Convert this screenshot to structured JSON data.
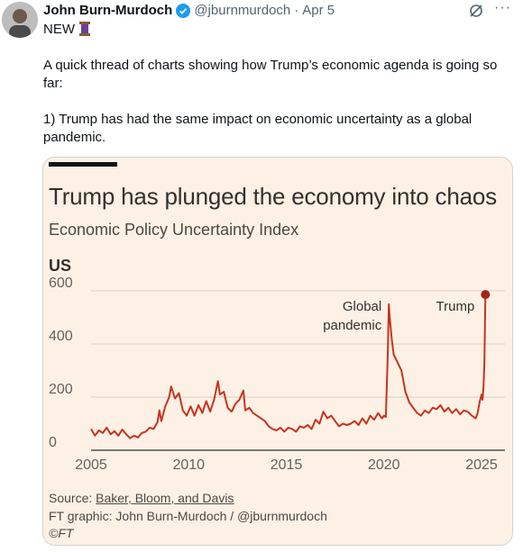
{
  "tweet": {
    "author_name": "John Burn-Murdoch",
    "handle": "@jburnmurdoch",
    "separator": "·",
    "date": "Apr 5",
    "more_label": "···",
    "line1": "NEW",
    "para1": "A quick thread of charts showing how Trump’s economic agenda is going so far:",
    "para2": "1) Trump has had the same impact on economic uncertainty as a global pandemic.",
    "icons": [
      "verified-badge-icon",
      "thread-spool-icon",
      "grok-icon",
      "more-icon"
    ],
    "colors": {
      "badge": "#1d9bf0",
      "text": "#0f1419",
      "muted": "#536471"
    }
  },
  "card": {
    "title": "Trump has plunged the economy into chaos",
    "subtitle": "Economic Policy Uncertainty Index",
    "unit": "US",
    "source_prefix": "Source: ",
    "source_link": "Baker, Bloom, and Davis",
    "credit": "FT graphic: John Burn-Murdoch / @jburnmurdoch",
    "copyright": "©FT",
    "colors": {
      "background": "#fdf1e6",
      "line": "#c8331f",
      "grid": "#d9cfc5"
    }
  },
  "chart_data": {
    "type": "line",
    "title": "Trump has plunged the economy into chaos",
    "subtitle": "Economic Policy Uncertainty Index",
    "ylabel": "US",
    "xlim": [
      2005,
      2025.3
    ],
    "ylim": [
      0,
      600
    ],
    "x_ticks": [
      2005,
      2010,
      2015,
      2020,
      2025
    ],
    "y_ticks": [
      0,
      200,
      400,
      600
    ],
    "grid": true,
    "annotations": [
      {
        "text_lines": [
          "Global",
          "pandemic"
        ],
        "x": 2020.3,
        "y": 555
      },
      {
        "text_lines": [
          "Trump"
        ],
        "x": 2025.2,
        "y": 586
      }
    ],
    "end_point": {
      "x": 2025.2,
      "y": 586
    },
    "series": [
      {
        "values": [
          [
            2005.0,
            80
          ],
          [
            2005.2,
            55
          ],
          [
            2005.4,
            75
          ],
          [
            2005.6,
            65
          ],
          [
            2005.8,
            85
          ],
          [
            2006.0,
            60
          ],
          [
            2006.2,
            72
          ],
          [
            2006.4,
            55
          ],
          [
            2006.6,
            78
          ],
          [
            2006.8,
            60
          ],
          [
            2007.0,
            45
          ],
          [
            2007.2,
            55
          ],
          [
            2007.4,
            48
          ],
          [
            2007.6,
            65
          ],
          [
            2007.8,
            70
          ],
          [
            2008.0,
            85
          ],
          [
            2008.2,
            80
          ],
          [
            2008.4,
            105
          ],
          [
            2008.5,
            150
          ],
          [
            2008.6,
            110
          ],
          [
            2008.8,
            165
          ],
          [
            2009.0,
            200
          ],
          [
            2009.1,
            240
          ],
          [
            2009.3,
            195
          ],
          [
            2009.5,
            215
          ],
          [
            2009.7,
            150
          ],
          [
            2009.9,
            130
          ],
          [
            2010.1,
            165
          ],
          [
            2010.3,
            130
          ],
          [
            2010.5,
            170
          ],
          [
            2010.7,
            140
          ],
          [
            2010.9,
            185
          ],
          [
            2011.1,
            145
          ],
          [
            2011.3,
            190
          ],
          [
            2011.5,
            260
          ],
          [
            2011.6,
            210
          ],
          [
            2011.8,
            220
          ],
          [
            2012.0,
            160
          ],
          [
            2012.2,
            145
          ],
          [
            2012.4,
            175
          ],
          [
            2012.6,
            190
          ],
          [
            2012.8,
            225
          ],
          [
            2012.9,
            150
          ],
          [
            2013.1,
            160
          ],
          [
            2013.3,
            140
          ],
          [
            2013.5,
            130
          ],
          [
            2013.7,
            120
          ],
          [
            2013.9,
            110
          ],
          [
            2014.1,
            90
          ],
          [
            2014.3,
            80
          ],
          [
            2014.5,
            75
          ],
          [
            2014.7,
            85
          ],
          [
            2014.9,
            70
          ],
          [
            2015.1,
            85
          ],
          [
            2015.3,
            80
          ],
          [
            2015.5,
            70
          ],
          [
            2015.7,
            90
          ],
          [
            2015.9,
            85
          ],
          [
            2016.1,
            95
          ],
          [
            2016.3,
            80
          ],
          [
            2016.5,
            115
          ],
          [
            2016.7,
            100
          ],
          [
            2016.9,
            145
          ],
          [
            2017.1,
            120
          ],
          [
            2017.3,
            130
          ],
          [
            2017.5,
            110
          ],
          [
            2017.7,
            90
          ],
          [
            2017.9,
            100
          ],
          [
            2018.1,
            95
          ],
          [
            2018.3,
            100
          ],
          [
            2018.5,
            110
          ],
          [
            2018.7,
            95
          ],
          [
            2018.9,
            120
          ],
          [
            2019.1,
            100
          ],
          [
            2019.3,
            130
          ],
          [
            2019.5,
            115
          ],
          [
            2019.7,
            140
          ],
          [
            2019.9,
            120
          ],
          [
            2020.0,
            130
          ],
          [
            2020.1,
            125
          ],
          [
            2020.2,
            370
          ],
          [
            2020.25,
            550
          ],
          [
            2020.3,
            500
          ],
          [
            2020.4,
            420
          ],
          [
            2020.5,
            360
          ],
          [
            2020.7,
            330
          ],
          [
            2020.9,
            300
          ],
          [
            2021.1,
            220
          ],
          [
            2021.3,
            180
          ],
          [
            2021.5,
            160
          ],
          [
            2021.7,
            140
          ],
          [
            2021.9,
            130
          ],
          [
            2022.1,
            150
          ],
          [
            2022.3,
            140
          ],
          [
            2022.5,
            160
          ],
          [
            2022.7,
            155
          ],
          [
            2022.9,
            170
          ],
          [
            2023.1,
            145
          ],
          [
            2023.3,
            160
          ],
          [
            2023.5,
            140
          ],
          [
            2023.7,
            155
          ],
          [
            2023.9,
            135
          ],
          [
            2024.1,
            150
          ],
          [
            2024.3,
            145
          ],
          [
            2024.5,
            130
          ],
          [
            2024.7,
            120
          ],
          [
            2024.8,
            140
          ],
          [
            2024.9,
            180
          ],
          [
            2025.0,
            210
          ],
          [
            2025.05,
            190
          ],
          [
            2025.1,
            240
          ],
          [
            2025.15,
            330
          ],
          [
            2025.2,
            586
          ]
        ]
      }
    ]
  }
}
